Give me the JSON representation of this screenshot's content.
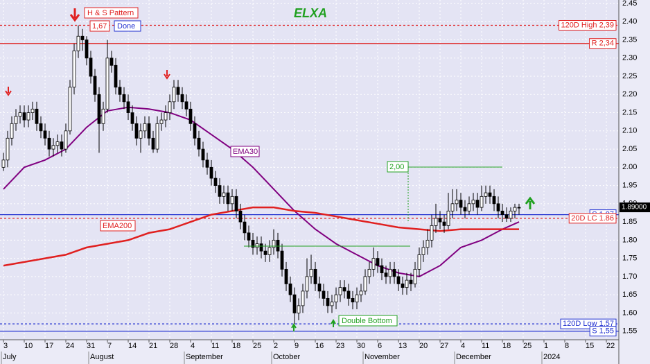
{
  "chart_data": {
    "type": "candlestick",
    "title": "ELXA",
    "x": [
      "2023-07-03",
      "2023-07-04",
      "2023-07-05",
      "2023-07-06",
      "2023-07-07",
      "2023-07-10",
      "2023-07-11",
      "2023-07-12",
      "2023-07-13",
      "2023-07-14",
      "2023-07-17",
      "2023-07-18",
      "2023-07-19",
      "2023-07-20",
      "2023-07-21",
      "2023-07-24",
      "2023-07-25",
      "2023-07-26",
      "2023-07-27",
      "2023-07-28",
      "2023-07-31",
      "2023-08-01",
      "2023-08-02",
      "2023-08-03",
      "2023-08-04",
      "2023-08-07",
      "2023-08-08",
      "2023-08-09",
      "2023-08-10",
      "2023-08-11",
      "2023-08-14",
      "2023-08-15",
      "2023-08-16",
      "2023-08-17",
      "2023-08-18",
      "2023-08-21",
      "2023-08-22",
      "2023-08-23",
      "2023-08-24",
      "2023-08-25",
      "2023-08-28",
      "2023-08-29",
      "2023-08-30",
      "2023-08-31",
      "2023-09-01",
      "2023-09-04",
      "2023-09-05",
      "2023-09-06",
      "2023-09-07",
      "2023-09-08",
      "2023-09-11",
      "2023-09-12",
      "2023-09-13",
      "2023-09-14",
      "2023-09-15",
      "2023-09-18",
      "2023-09-19",
      "2023-09-20",
      "2023-09-21",
      "2023-09-22",
      "2023-09-25",
      "2023-09-26",
      "2023-09-27",
      "2023-09-28",
      "2023-09-29",
      "2023-10-02",
      "2023-10-03",
      "2023-10-04",
      "2023-10-05",
      "2023-10-06",
      "2023-10-09",
      "2023-10-10",
      "2023-10-11",
      "2023-10-12",
      "2023-10-13",
      "2023-10-16",
      "2023-10-17",
      "2023-10-18",
      "2023-10-19",
      "2023-10-20",
      "2023-10-23",
      "2023-10-24",
      "2023-10-25",
      "2023-10-26",
      "2023-10-27",
      "2023-10-30",
      "2023-10-31",
      "2023-11-01",
      "2023-11-02",
      "2023-11-03",
      "2023-11-06",
      "2023-11-07",
      "2023-11-08",
      "2023-11-09",
      "2023-11-10",
      "2023-11-13",
      "2023-11-14",
      "2023-11-15",
      "2023-11-16",
      "2023-11-17",
      "2023-11-20",
      "2023-11-21",
      "2023-11-22",
      "2023-11-23",
      "2023-11-24",
      "2023-11-27",
      "2023-11-28",
      "2023-11-29",
      "2023-11-30",
      "2023-12-01",
      "2023-12-04",
      "2023-12-05",
      "2023-12-06",
      "2023-12-07",
      "2023-12-08",
      "2023-12-11",
      "2023-12-12",
      "2023-12-13",
      "2023-12-14",
      "2023-12-15",
      "2023-12-18",
      "2023-12-19",
      "2023-12-20",
      "2023-12-21",
      "2023-12-22"
    ],
    "ohlc": [
      [
        2.0,
        2.04,
        1.99,
        2.02
      ],
      [
        2.02,
        2.1,
        2.0,
        2.08
      ],
      [
        2.08,
        2.14,
        2.06,
        2.12
      ],
      [
        2.12,
        2.16,
        2.1,
        2.14
      ],
      [
        2.14,
        2.17,
        2.12,
        2.15
      ],
      [
        2.15,
        2.17,
        2.11,
        2.13
      ],
      [
        2.13,
        2.17,
        2.11,
        2.15
      ],
      [
        2.15,
        2.18,
        2.13,
        2.16
      ],
      [
        2.16,
        2.18,
        2.1,
        2.12
      ],
      [
        2.12,
        2.14,
        2.08,
        2.1
      ],
      [
        2.1,
        2.12,
        2.06,
        2.08
      ],
      [
        2.08,
        2.1,
        2.03,
        2.05
      ],
      [
        2.05,
        2.08,
        2.03,
        2.06
      ],
      [
        2.06,
        2.09,
        2.04,
        2.07
      ],
      [
        2.07,
        2.09,
        2.03,
        2.05
      ],
      [
        2.05,
        2.12,
        2.04,
        2.1
      ],
      [
        2.1,
        2.24,
        2.09,
        2.22
      ],
      [
        2.22,
        2.34,
        2.2,
        2.32
      ],
      [
        2.32,
        2.39,
        2.3,
        2.36
      ],
      [
        2.36,
        2.38,
        2.32,
        2.35
      ],
      [
        2.35,
        2.36,
        2.28,
        2.3
      ],
      [
        2.3,
        2.32,
        2.23,
        2.25
      ],
      [
        2.25,
        2.27,
        2.18,
        2.2
      ],
      [
        2.2,
        2.22,
        2.04,
        2.12
      ],
      [
        2.12,
        2.18,
        2.1,
        2.16
      ],
      [
        2.16,
        2.35,
        2.15,
        2.3
      ],
      [
        2.3,
        2.32,
        2.26,
        2.28
      ],
      [
        2.28,
        2.3,
        2.2,
        2.22
      ],
      [
        2.22,
        2.24,
        2.18,
        2.2
      ],
      [
        2.2,
        2.22,
        2.16,
        2.18
      ],
      [
        2.18,
        2.2,
        2.13,
        2.15
      ],
      [
        2.15,
        2.17,
        2.1,
        2.12
      ],
      [
        2.12,
        2.14,
        2.06,
        2.08
      ],
      [
        2.08,
        2.12,
        2.04,
        2.1
      ],
      [
        2.1,
        2.14,
        2.08,
        2.12
      ],
      [
        2.12,
        2.14,
        2.06,
        2.08
      ],
      [
        2.08,
        2.1,
        2.04,
        2.05
      ],
      [
        2.05,
        2.14,
        2.04,
        2.12
      ],
      [
        2.12,
        2.15,
        2.1,
        2.13
      ],
      [
        2.13,
        2.17,
        2.11,
        2.15
      ],
      [
        2.15,
        2.2,
        2.13,
        2.18
      ],
      [
        2.18,
        2.24,
        2.16,
        2.22
      ],
      [
        2.22,
        2.24,
        2.18,
        2.2
      ],
      [
        2.2,
        2.22,
        2.16,
        2.18
      ],
      [
        2.18,
        2.2,
        2.14,
        2.16
      ],
      [
        2.16,
        2.18,
        2.1,
        2.12
      ],
      [
        2.12,
        2.14,
        2.06,
        2.08
      ],
      [
        2.08,
        2.1,
        2.03,
        2.05
      ],
      [
        2.05,
        2.07,
        2.0,
        2.02
      ],
      [
        2.02,
        2.04,
        1.98,
        2.0
      ],
      [
        2.0,
        2.02,
        1.95,
        1.97
      ],
      [
        1.97,
        1.99,
        1.93,
        1.95
      ],
      [
        1.95,
        1.97,
        1.9,
        1.92
      ],
      [
        1.92,
        1.95,
        1.9,
        1.93
      ],
      [
        1.93,
        1.95,
        1.88,
        1.9
      ],
      [
        1.9,
        1.94,
        1.88,
        1.92
      ],
      [
        1.92,
        1.94,
        1.86,
        1.88
      ],
      [
        1.88,
        1.9,
        1.83,
        1.85
      ],
      [
        1.85,
        1.87,
        1.8,
        1.82
      ],
      [
        1.82,
        1.84,
        1.78,
        1.8
      ],
      [
        1.8,
        1.82,
        1.76,
        1.78
      ],
      [
        1.78,
        1.81,
        1.76,
        1.79
      ],
      [
        1.79,
        1.81,
        1.75,
        1.77
      ],
      [
        1.77,
        1.79,
        1.74,
        1.76
      ],
      [
        1.76,
        1.8,
        1.74,
        1.78
      ],
      [
        1.78,
        1.83,
        1.76,
        1.8
      ],
      [
        1.8,
        1.82,
        1.75,
        1.77
      ],
      [
        1.77,
        1.79,
        1.7,
        1.72
      ],
      [
        1.72,
        1.74,
        1.66,
        1.68
      ],
      [
        1.68,
        1.7,
        1.63,
        1.65
      ],
      [
        1.65,
        1.67,
        1.57,
        1.6
      ],
      [
        1.6,
        1.64,
        1.58,
        1.62
      ],
      [
        1.62,
        1.68,
        1.6,
        1.66
      ],
      [
        1.66,
        1.75,
        1.64,
        1.7
      ],
      [
        1.7,
        1.76,
        1.68,
        1.72
      ],
      [
        1.72,
        1.74,
        1.66,
        1.68
      ],
      [
        1.68,
        1.7,
        1.64,
        1.66
      ],
      [
        1.66,
        1.68,
        1.62,
        1.64
      ],
      [
        1.64,
        1.66,
        1.6,
        1.62
      ],
      [
        1.62,
        1.65,
        1.6,
        1.63
      ],
      [
        1.63,
        1.67,
        1.61,
        1.65
      ],
      [
        1.65,
        1.69,
        1.63,
        1.67
      ],
      [
        1.67,
        1.69,
        1.64,
        1.66
      ],
      [
        1.66,
        1.68,
        1.62,
        1.64
      ],
      [
        1.64,
        1.66,
        1.61,
        1.63
      ],
      [
        1.63,
        1.67,
        1.61,
        1.65
      ],
      [
        1.65,
        1.68,
        1.63,
        1.66
      ],
      [
        1.66,
        1.72,
        1.65,
        1.7
      ],
      [
        1.7,
        1.74,
        1.68,
        1.72
      ],
      [
        1.72,
        1.78,
        1.7,
        1.75
      ],
      [
        1.75,
        1.77,
        1.71,
        1.73
      ],
      [
        1.73,
        1.75,
        1.69,
        1.71
      ],
      [
        1.71,
        1.73,
        1.68,
        1.7
      ],
      [
        1.7,
        1.74,
        1.68,
        1.72
      ],
      [
        1.72,
        1.74,
        1.68,
        1.7
      ],
      [
        1.7,
        1.72,
        1.66,
        1.68
      ],
      [
        1.68,
        1.7,
        1.65,
        1.67
      ],
      [
        1.67,
        1.71,
        1.65,
        1.69
      ],
      [
        1.69,
        1.71,
        1.66,
        1.68
      ],
      [
        1.68,
        1.74,
        1.67,
        1.72
      ],
      [
        1.72,
        1.78,
        1.7,
        1.76
      ],
      [
        1.76,
        1.8,
        1.74,
        1.78
      ],
      [
        1.78,
        1.83,
        1.76,
        1.8
      ],
      [
        1.8,
        1.87,
        1.78,
        1.84
      ],
      [
        1.84,
        1.9,
        1.82,
        1.86
      ],
      [
        1.86,
        1.88,
        1.83,
        1.85
      ],
      [
        1.85,
        1.87,
        1.82,
        1.84
      ],
      [
        1.84,
        1.93,
        1.83,
        1.88
      ],
      [
        1.88,
        1.94,
        1.86,
        1.9
      ],
      [
        1.9,
        1.94,
        1.88,
        1.91
      ],
      [
        1.91,
        1.93,
        1.87,
        1.89
      ],
      [
        1.89,
        1.91,
        1.86,
        1.88
      ],
      [
        1.88,
        1.92,
        1.87,
        1.9
      ],
      [
        1.9,
        1.93,
        1.88,
        1.91
      ],
      [
        1.91,
        1.93,
        1.87,
        1.89
      ],
      [
        1.89,
        1.95,
        1.88,
        1.92
      ],
      [
        1.92,
        1.95,
        1.9,
        1.93
      ],
      [
        1.93,
        1.95,
        1.9,
        1.92
      ],
      [
        1.92,
        1.94,
        1.88,
        1.9
      ],
      [
        1.9,
        1.92,
        1.86,
        1.88
      ],
      [
        1.88,
        1.9,
        1.85,
        1.87
      ],
      [
        1.87,
        1.89,
        1.85,
        1.86
      ],
      [
        1.86,
        1.89,
        1.85,
        1.88
      ],
      [
        1.88,
        1.9,
        1.86,
        1.89
      ],
      [
        1.89,
        1.9,
        1.87,
        1.89
      ]
    ],
    "up_color": "#ffffff",
    "down_color": "#000000",
    "series": [
      {
        "name": "EMA30",
        "type": "line",
        "color": "#800080",
        "x": [
          "2023-07-03",
          "2023-07-10",
          "2023-07-17",
          "2023-07-24",
          "2023-07-31",
          "2023-08-07",
          "2023-08-14",
          "2023-08-21",
          "2023-08-28",
          "2023-09-04",
          "2023-09-11",
          "2023-09-18",
          "2023-09-25",
          "2023-10-02",
          "2023-10-09",
          "2023-10-16",
          "2023-10-23",
          "2023-10-30",
          "2023-11-06",
          "2023-11-13",
          "2023-11-20",
          "2023-11-27",
          "2023-12-04",
          "2023-12-11",
          "2023-12-18",
          "2023-12-22"
        ],
        "values": [
          1.94,
          2.0,
          2.02,
          2.05,
          2.11,
          2.155,
          2.165,
          2.16,
          2.15,
          2.13,
          2.09,
          2.05,
          2.0,
          1.94,
          1.88,
          1.83,
          1.79,
          1.76,
          1.73,
          1.71,
          1.7,
          1.73,
          1.78,
          1.8,
          1.83,
          1.85
        ]
      },
      {
        "name": "EMA200",
        "type": "line",
        "color": "#e02020",
        "x": [
          "2023-07-03",
          "2023-07-10",
          "2023-07-17",
          "2023-07-24",
          "2023-07-31",
          "2023-08-07",
          "2023-08-14",
          "2023-08-21",
          "2023-08-28",
          "2023-09-04",
          "2023-09-11",
          "2023-09-18",
          "2023-09-25",
          "2023-10-02",
          "2023-10-09",
          "2023-10-16",
          "2023-10-23",
          "2023-10-30",
          "2023-11-06",
          "2023-11-13",
          "2023-11-20",
          "2023-11-27",
          "2023-12-04",
          "2023-12-11",
          "2023-12-18",
          "2023-12-22"
        ],
        "values": [
          1.73,
          1.74,
          1.75,
          1.76,
          1.78,
          1.79,
          1.8,
          1.82,
          1.83,
          1.85,
          1.87,
          1.88,
          1.89,
          1.89,
          1.88,
          1.875,
          1.865,
          1.855,
          1.845,
          1.835,
          1.83,
          1.825,
          1.83,
          1.83,
          1.83,
          1.83
        ]
      }
    ],
    "xlim": [
      "2023-07-03",
      "2024-01-25"
    ],
    "xticks": [
      {
        "value": "2023-07-03",
        "label": "3"
      },
      {
        "value": "2023-07-10",
        "label": "10"
      },
      {
        "value": "2023-07-17",
        "label": "17"
      },
      {
        "value": "2023-07-24",
        "label": "24"
      },
      {
        "value": "2023-07-31",
        "label": "31"
      },
      {
        "value": "2023-08-07",
        "label": "7"
      },
      {
        "value": "2023-08-14",
        "label": "14"
      },
      {
        "value": "2023-08-21",
        "label": "21"
      },
      {
        "value": "2023-08-28",
        "label": "28"
      },
      {
        "value": "2023-09-04",
        "label": "4"
      },
      {
        "value": "2023-09-11",
        "label": "11"
      },
      {
        "value": "2023-09-18",
        "label": "18"
      },
      {
        "value": "2023-09-25",
        "label": "25"
      },
      {
        "value": "2023-10-02",
        "label": "2"
      },
      {
        "value": "2023-10-09",
        "label": "9"
      },
      {
        "value": "2023-10-16",
        "label": "16"
      },
      {
        "value": "2023-10-23",
        "label": "23"
      },
      {
        "value": "2023-10-30",
        "label": "30"
      },
      {
        "value": "2023-11-06",
        "label": "6"
      },
      {
        "value": "2023-11-13",
        "label": "13"
      },
      {
        "value": "2023-11-20",
        "label": "20"
      },
      {
        "value": "2023-11-27",
        "label": "27"
      },
      {
        "value": "2023-12-04",
        "label": "4"
      },
      {
        "value": "2023-12-11",
        "label": "11"
      },
      {
        "value": "2023-12-18",
        "label": "18"
      },
      {
        "value": "2023-12-25",
        "label": "25"
      },
      {
        "value": "2024-01-01",
        "label": "1"
      },
      {
        "value": "2024-01-08",
        "label": "8"
      },
      {
        "value": "2024-01-15",
        "label": "15"
      },
      {
        "value": "2024-01-22",
        "label": "22"
      }
    ],
    "month_labels": [
      {
        "value": "2023-07-03",
        "label": "July"
      },
      {
        "value": "2023-08-01",
        "label": "August"
      },
      {
        "value": "2023-09-01",
        "label": "September"
      },
      {
        "value": "2023-10-02",
        "label": "October"
      },
      {
        "value": "2023-11-01",
        "label": "November"
      },
      {
        "value": "2023-12-01",
        "label": "December"
      },
      {
        "value": "2024-01-01",
        "label": "2024"
      }
    ],
    "ylim": [
      1.5265,
      2.4595
    ],
    "yticks": [
      1.55,
      {
        "value": 1.6,
        "label": "1.60"
      },
      1.65,
      {
        "value": 1.7,
        "label": "1.70"
      },
      1.75,
      {
        "value": 1.8,
        "label": "1.80"
      },
      1.85,
      {
        "value": 1.9,
        "label": "1.90"
      },
      1.95,
      {
        "value": 2.0,
        "label": "2.00"
      },
      2.05,
      {
        "value": 2.1,
        "label": "2.10"
      },
      2.15,
      {
        "value": 2.2,
        "label": "2.20"
      },
      2.25,
      {
        "value": 2.3,
        "label": "2.30"
      },
      2.35,
      {
        "value": 2.4,
        "label": "2.40"
      },
      2.45
    ],
    "grid": true,
    "levels": [
      {
        "label": "120D High 2,39",
        "value": 2.39,
        "color": "#e02020",
        "dashed": true
      },
      {
        "label": "R 2,34",
        "value": 2.34,
        "color": "#e02020",
        "dashed": false
      },
      {
        "label": "S 1,87",
        "value": 1.87,
        "color": "#2030d0",
        "dashed": false
      },
      {
        "label": "20D LC 1.86",
        "value": 1.86,
        "color": "#e02020",
        "dashed": true
      },
      {
        "label": "120D Low 1,57",
        "value": 1.57,
        "color": "#2030d0",
        "dashed": true
      },
      {
        "label": "S 1,55",
        "value": 1.55,
        "color": "#2030d0",
        "dashed": false
      }
    ],
    "last_price": {
      "value": 1.89,
      "label": "1.89000"
    },
    "annotations": {
      "hs_pattern": "H & S Pattern",
      "target": "1,67",
      "done": "Done",
      "double_bottom": "Double Bottom",
      "level": "2,00"
    }
  }
}
